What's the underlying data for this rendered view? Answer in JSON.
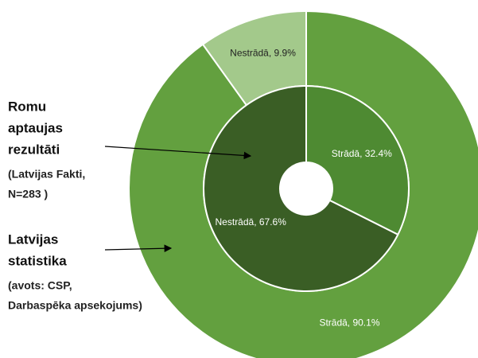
{
  "chart_data": {
    "type": "donut",
    "rings": [
      {
        "values": [
          90.1,
          9.9
        ],
        "value_labels": [
          "Strādā, 90.1%",
          "Nestrādā, 9.9%"
        ],
        "colors": [
          "#63a03f",
          "#a3c98b"
        ]
      },
      {
        "values": [
          32.4,
          67.6
        ],
        "value_labels": [
          "Strādā, 32.4%",
          "Nestrādā, 67.6%"
        ],
        "colors": [
          "#4e8a32",
          "#3a5e25"
        ]
      }
    ],
    "annotations": [
      {
        "title": [
          "Romu",
          "aptaujas",
          "rezultāti"
        ],
        "note": [
          "(Latvijas Fakti,",
          "N=283 )"
        ]
      },
      {
        "title": [
          "Latvijas",
          "statistika"
        ],
        "note": [
          "(avots: CSP,",
          "Darbaspēka apsekojums)"
        ]
      }
    ]
  }
}
